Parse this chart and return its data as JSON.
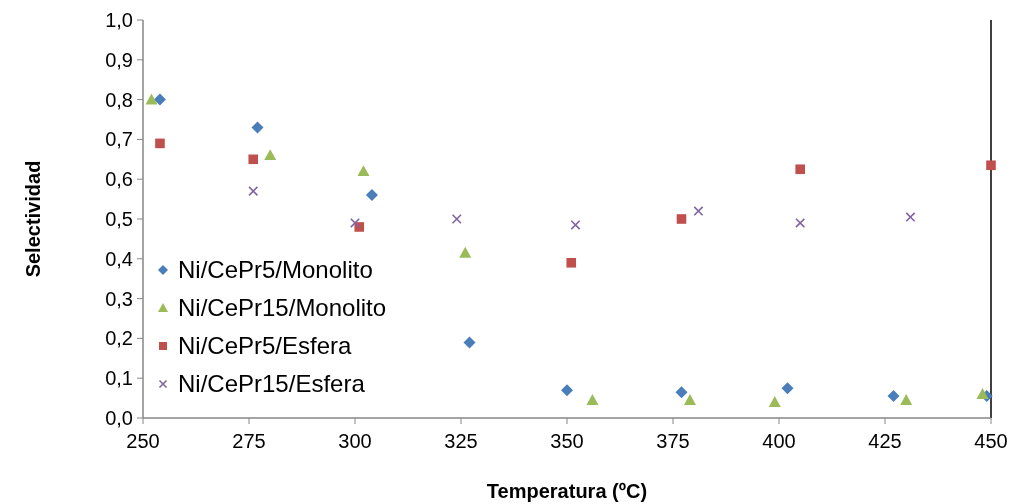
{
  "chart_data": {
    "type": "scatter",
    "xlabel": "Temperatura (ºC)",
    "ylabel": "Selectividad",
    "xlim": [
      250,
      450
    ],
    "xticks": [
      250,
      275,
      300,
      325,
      350,
      375,
      400,
      425,
      450
    ],
    "ylim": [
      0,
      1
    ],
    "yticks": [
      {
        "value": 0,
        "label": "0,0"
      },
      {
        "value": 0.1,
        "label": "0,1"
      },
      {
        "value": 0.2,
        "label": "0,2"
      },
      {
        "value": 0.3,
        "label": "0,3"
      },
      {
        "value": 0.4,
        "label": "0,4"
      },
      {
        "value": 0.5,
        "label": "0,5"
      },
      {
        "value": 0.6,
        "label": "0,6"
      },
      {
        "value": 0.7,
        "label": "0,7"
      },
      {
        "value": 0.8,
        "label": "0,8"
      },
      {
        "value": 0.9,
        "label": "0,9"
      },
      {
        "value": 1,
        "label": "1,0"
      }
    ],
    "grid": false,
    "legend": "bottom left",
    "series": [
      {
        "name": "Ni/CePr5/Monolito",
        "color": "#4a7ebb",
        "marker": "diamond",
        "x": [
          254,
          277,
          304,
          327,
          350,
          377,
          402,
          427,
          449
        ],
        "values": [
          0.8,
          0.73,
          0.56,
          0.19,
          0.07,
          0.065,
          0.075,
          0.055,
          0.055
        ]
      },
      {
        "name": "Ni/CePr15/Monolito",
        "color": "#9bbb59",
        "marker": "triangle",
        "x": [
          252,
          280,
          302,
          326,
          356,
          379,
          399,
          430,
          448
        ],
        "values": [
          0.8,
          0.66,
          0.62,
          0.415,
          0.045,
          0.045,
          0.04,
          0.045,
          0.06
        ]
      },
      {
        "name": "Ni/CePr5/Esfera",
        "color": "#c0504d",
        "marker": "square",
        "x": [
          254,
          276,
          301,
          351,
          377,
          405,
          450
        ],
        "values": [
          0.69,
          0.65,
          0.48,
          0.39,
          0.5,
          0.625,
          0.635
        ]
      },
      {
        "name": "Ni/CePr15/Esfera",
        "color": "#8064a2",
        "marker": "cross",
        "x": [
          276,
          300,
          324,
          352,
          381,
          405,
          431
        ],
        "values": [
          0.57,
          0.49,
          0.5,
          0.485,
          0.52,
          0.49,
          0.505
        ]
      }
    ]
  }
}
